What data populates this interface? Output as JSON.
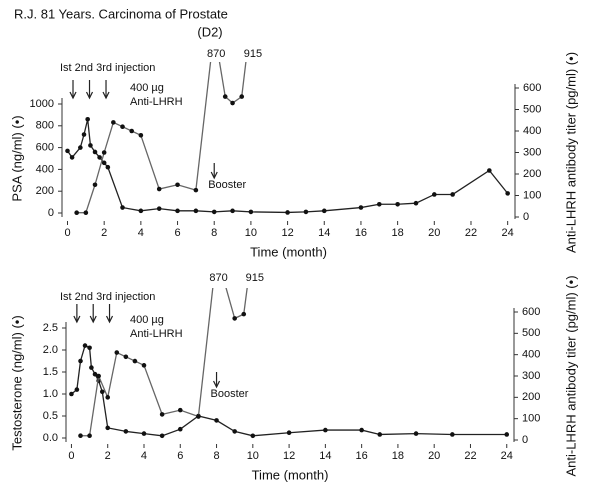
{
  "chart_data": [
    {
      "type": "line",
      "title": "R.J. 81 Years. Carcinoma of Prostate",
      "subtitle": "(D2)",
      "xlabel": "Time (month)",
      "ylabel": "PSA (ng/ml)  (•)",
      "y2label": "Anti-LHRH antibody titer (pg/ml) (•)",
      "xlim": [
        -0.3,
        24.4
      ],
      "xticks": [
        0,
        2,
        4,
        6,
        8,
        10,
        12,
        14,
        16,
        18,
        20,
        22,
        24
      ],
      "ylim": [
        0,
        1000
      ],
      "yticks": [
        0,
        200,
        400,
        600,
        800,
        1000
      ],
      "y2lim": [
        0,
        600
      ],
      "y2ticks": [
        0,
        100,
        200,
        300,
        400,
        500,
        600
      ],
      "annotations": {
        "injection": "Ist 2nd 3rd injection",
        "dose": "400 µg",
        "drug": "Anti-LHRH",
        "booster": "Booster"
      },
      "series": [
        {
          "color": "#222222",
          "x": [
            0,
            0.25,
            0.7,
            0.9,
            1.1,
            1.25,
            1.5,
            1.75,
            2,
            2.2,
            3,
            4,
            5,
            6,
            7,
            8,
            9,
            10,
            12,
            13,
            14,
            16,
            17,
            18,
            19,
            20,
            21,
            23,
            24
          ],
          "values": [
            570,
            510,
            600,
            720,
            860,
            620,
            560,
            510,
            460,
            420,
            50,
            20,
            40,
            20,
            20,
            10,
            20,
            10,
            5,
            10,
            20,
            50,
            80,
            80,
            90,
            170,
            170,
            390,
            180
          ]
        },
        {
          "color": "#666666",
          "axis": "y2",
          "x": [
            0.5,
            1,
            1.5,
            2,
            2.5,
            3,
            3.5,
            4,
            5,
            6,
            7,
            8,
            8.6,
            9,
            9.5,
            10
          ],
          "values": [
            20,
            20,
            150,
            300,
            440,
            420,
            400,
            380,
            130,
            150,
            125,
            870,
            560,
            530,
            560,
            915
          ]
        }
      ]
    },
    {
      "type": "line",
      "xlabel": "Time (month)",
      "ylabel": "Testosterone (ng/ml)  (•)",
      "y2label": "Anti-LHRH antibody titer (pg/ml) (•)",
      "xlim": [
        -0.3,
        24.4
      ],
      "xticks": [
        0,
        2,
        4,
        6,
        8,
        10,
        12,
        14,
        16,
        18,
        20,
        22,
        24
      ],
      "ylim": [
        0,
        2.5
      ],
      "yticks": [
        {
          "value": 0,
          "label": "0.0"
        },
        0.5,
        {
          "value": 1,
          "label": "1.0"
        },
        1.5,
        {
          "value": 2,
          "label": "2.0"
        },
        2.5
      ],
      "y2lim": [
        0,
        600
      ],
      "y2ticks": [
        0,
        100,
        200,
        300,
        400,
        500,
        600
      ],
      "annotations": {
        "injection": "Ist 2nd 3rd injection",
        "dose": "400 µg",
        "drug": "Anti-LHRH",
        "booster": "Booster"
      },
      "series": [
        {
          "color": "#222222",
          "x": [
            0,
            0.3,
            0.5,
            0.75,
            1,
            1.1,
            1.3,
            1.5,
            1.7,
            2,
            3,
            4,
            5,
            6,
            7,
            8,
            9,
            10,
            12,
            14,
            16,
            17,
            19,
            21,
            24
          ],
          "values": [
            1.0,
            1.1,
            1.75,
            2.1,
            2.05,
            1.6,
            1.45,
            1.3,
            1.05,
            0.23,
            0.15,
            0.1,
            0.05,
            0.2,
            0.5,
            0.4,
            0.15,
            0.05,
            0.12,
            0.18,
            0.18,
            0.08,
            0.1,
            0.08,
            0.08
          ]
        },
        {
          "color": "#666666",
          "axis": "y2",
          "x": [
            0.5,
            1,
            1.5,
            2,
            2.5,
            3,
            3.5,
            4,
            5,
            6,
            7,
            8,
            9,
            9.5,
            10
          ],
          "values": [
            20,
            20,
            300,
            200,
            410,
            390,
            370,
            350,
            120,
            140,
            110,
            870,
            570,
            590,
            915
          ]
        }
      ]
    }
  ]
}
